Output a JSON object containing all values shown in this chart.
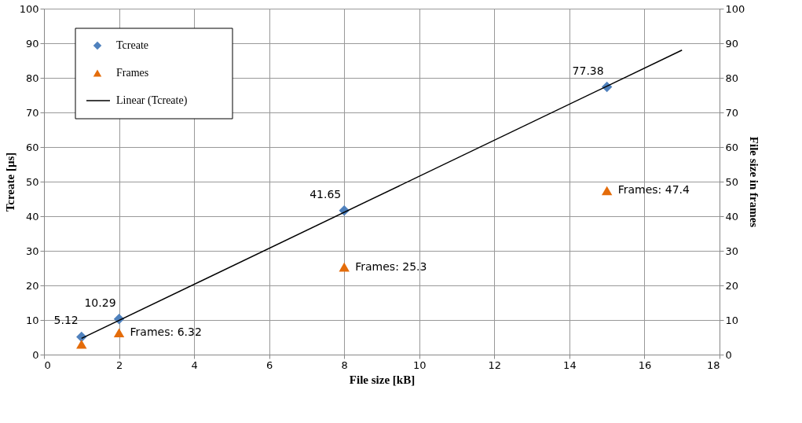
{
  "chart_data": {
    "type": "scatter",
    "xlabel": "File size [kB]",
    "ylabel": "Tcreate [µs]",
    "y2label": "File size in frames",
    "xlim": [
      0,
      18
    ],
    "xticks": [
      0,
      2,
      4,
      6,
      8,
      10,
      12,
      14,
      16,
      18
    ],
    "ylim": [
      0,
      100
    ],
    "yticks": [
      0,
      10,
      20,
      30,
      40,
      50,
      60,
      70,
      80,
      90,
      100
    ],
    "y2lim": [
      0,
      100
    ],
    "y2ticks": [
      0,
      10,
      20,
      30,
      40,
      50,
      60,
      70,
      80,
      90,
      100
    ],
    "grid": true,
    "legend": "top left",
    "series": [
      {
        "name": "Tcreate",
        "marker": "diamond",
        "color": "#4f81bd",
        "x": [
          1,
          2,
          8,
          15
        ],
        "values": [
          5.12,
          10.29,
          41.65,
          77.38
        ],
        "value_labels": [
          "5.12",
          "10.29",
          "41.65",
          "77.38"
        ]
      },
      {
        "name": "Frames",
        "marker": "triangle",
        "color": "#e46c0a",
        "axis": "y2",
        "x": [
          1,
          2,
          8,
          15
        ],
        "values": [
          3,
          6.32,
          25.3,
          47.4
        ],
        "value_labels": [
          null,
          "Frames: 6.32",
          "Frames: 25.3",
          "Frames: 47.4"
        ]
      },
      {
        "name": "Linear (Tcreate)",
        "type": "line",
        "marker": "none",
        "line_style": "solid",
        "color": "#000000",
        "x": [
          1,
          17
        ],
        "values": [
          4.7,
          88
        ]
      }
    ]
  }
}
